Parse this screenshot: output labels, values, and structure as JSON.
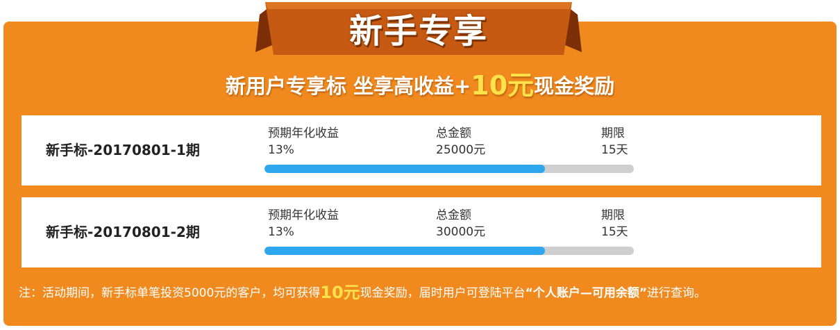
{
  "banner": {
    "title": "新手专享",
    "headline_prefix": "新用户专享标  坐享高收益+",
    "headline_amount": "10元",
    "headline_suffix": "现金奖励"
  },
  "products": [
    {
      "name": "新手标-20170801-1期",
      "rate_label": "预期年化收益",
      "rate_value": "13%",
      "total_label": "总金额",
      "total_value": "25000元",
      "term_label": "期限",
      "term_value": "15天",
      "progress": 0.76
    },
    {
      "name": "新手标-20170801-2期",
      "rate_label": "预期年化收益",
      "rate_value": "13%",
      "total_label": "总金额",
      "total_value": "30000元",
      "term_label": "期限",
      "term_value": "15天",
      "progress": 0.76
    }
  ],
  "note": {
    "part1": "注：活动期间，新手标单笔投资5000元的客户，均可获得",
    "amount": "10元",
    "part2": "现金奖励，届时用户可登陆平台",
    "quote": "“个人账户—可用余额”",
    "part3": "进行查询。"
  },
  "colors": {
    "panel": "#f08a1e",
    "ribbon": "#c65a12",
    "progress_fill": "#2fa7ef",
    "progress_track": "#cfcfcf",
    "highlight": "#ffe14a"
  }
}
